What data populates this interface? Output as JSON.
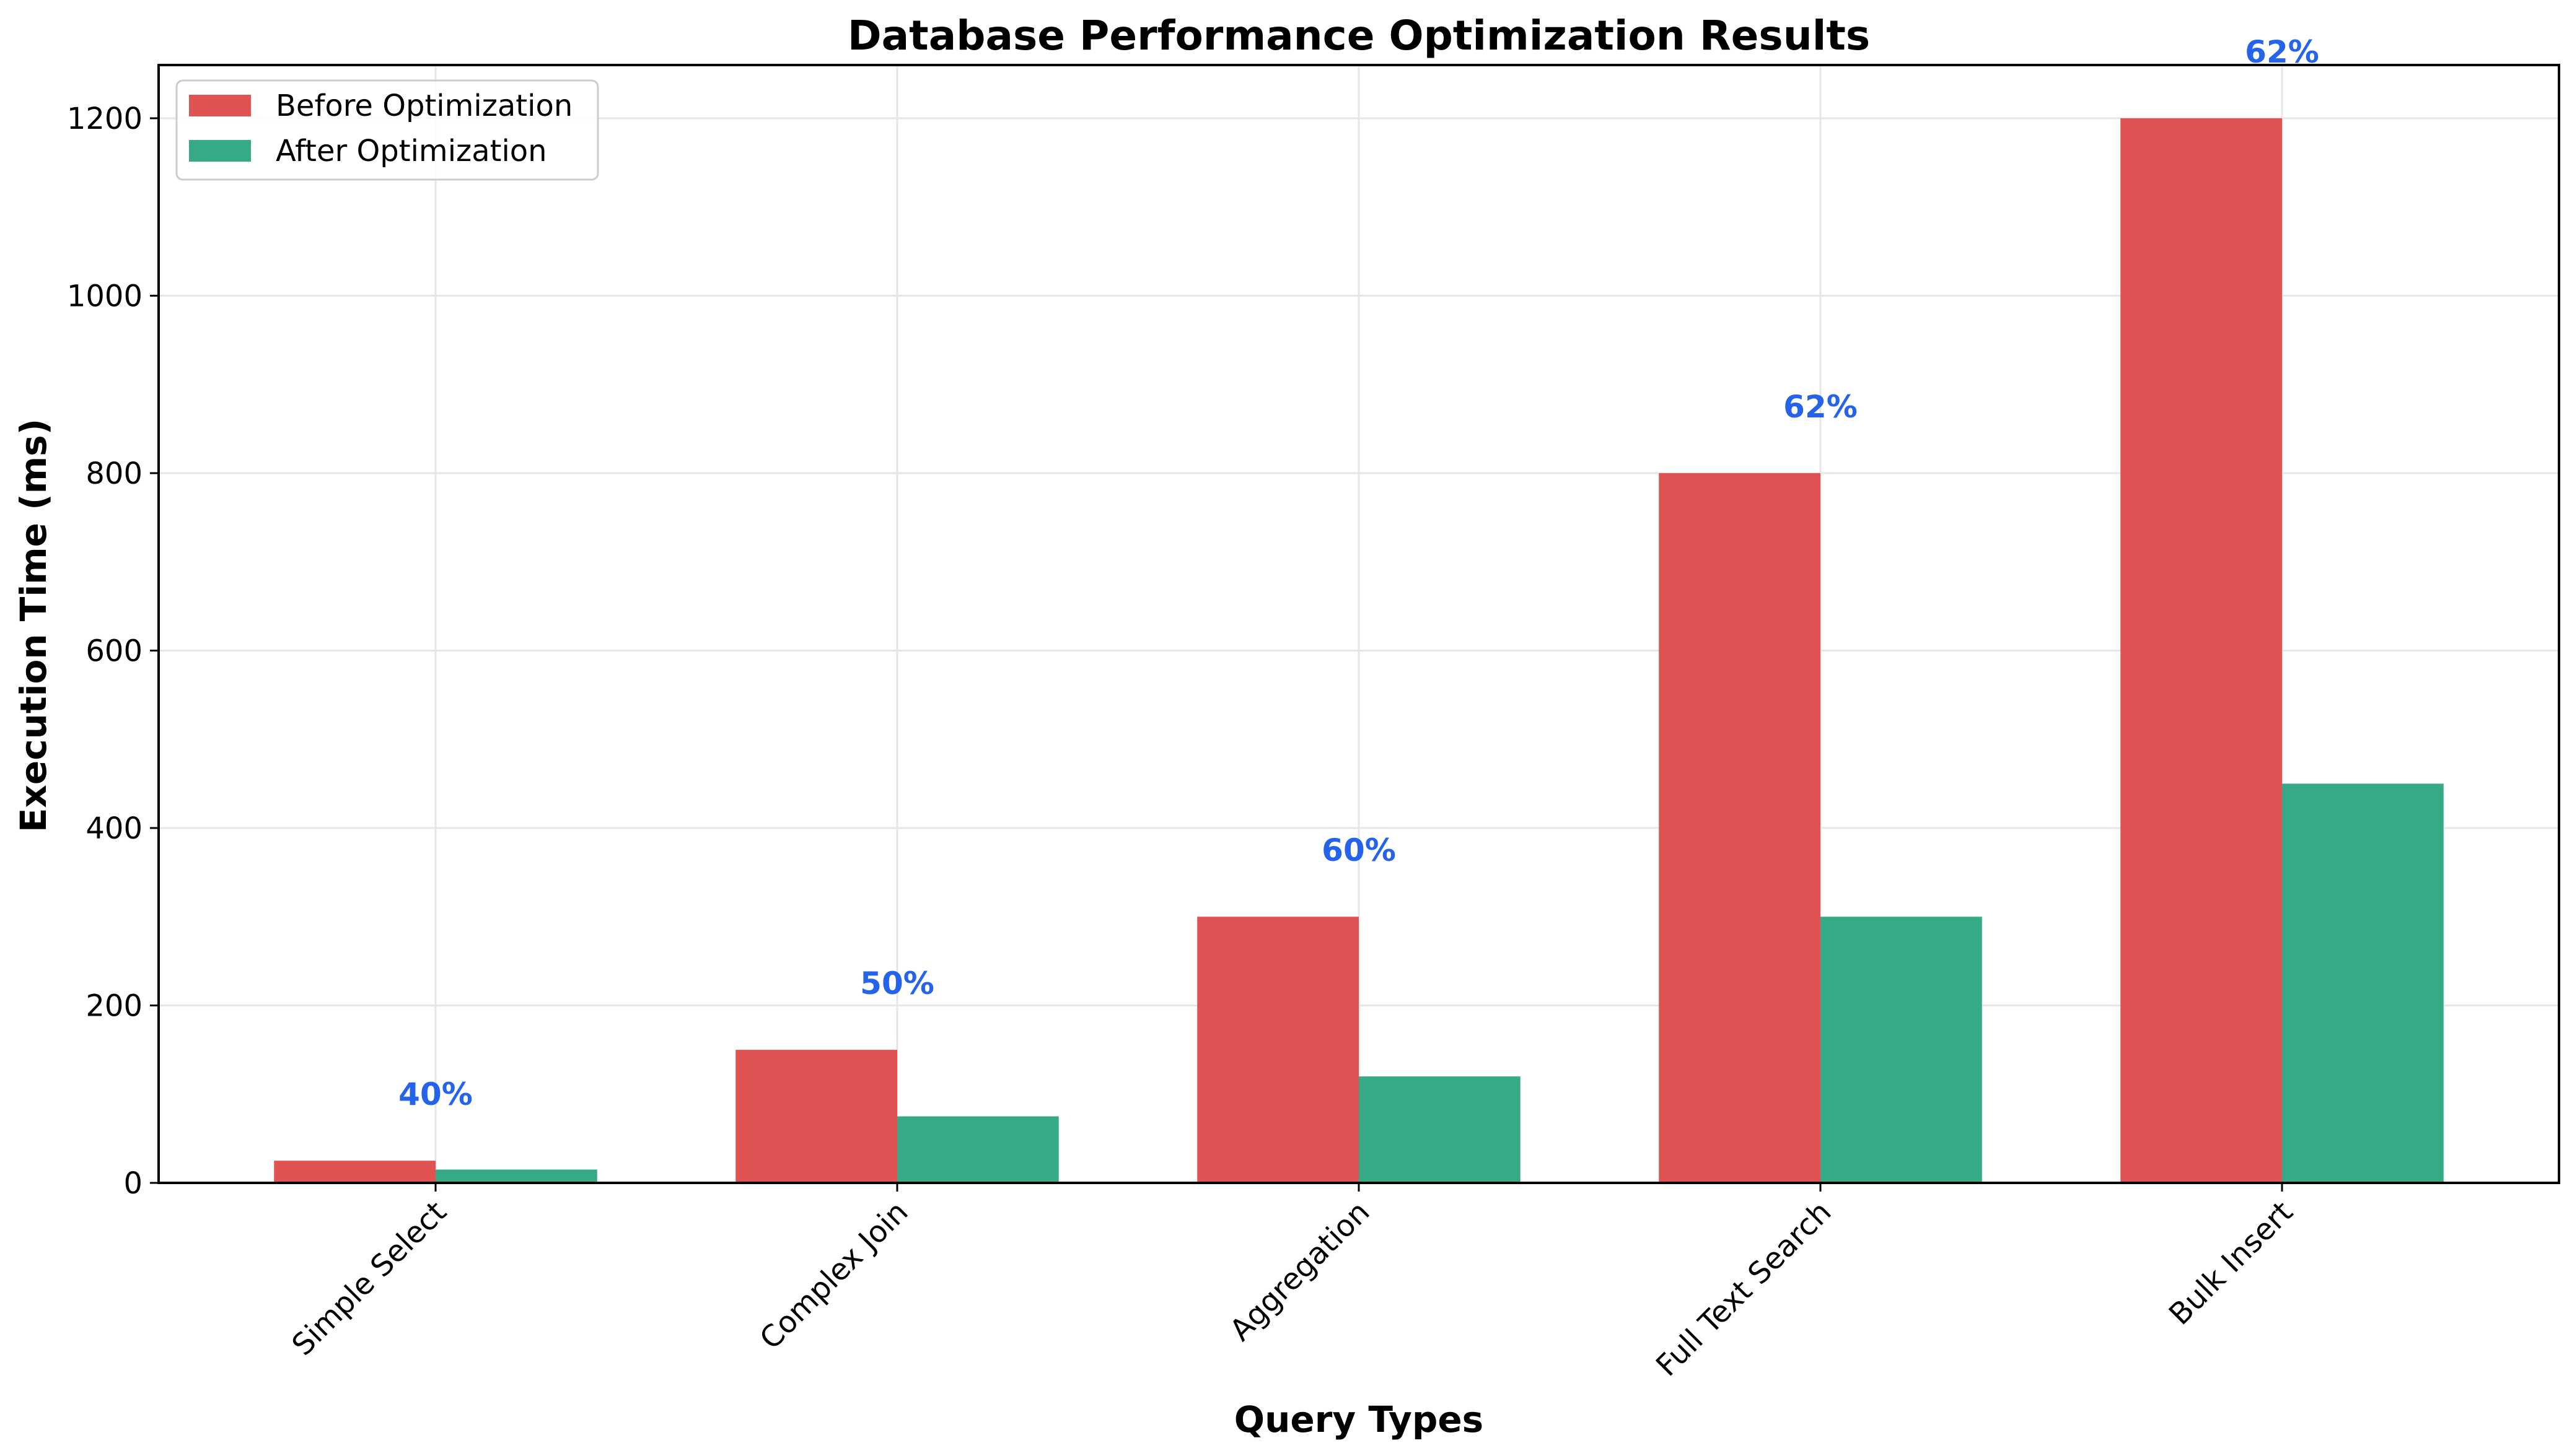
{
  "chart_data": {
    "type": "bar",
    "title": "Database Performance Optimization Results",
    "xlabel": "Query Types",
    "ylabel": "Execution Time (ms)",
    "categories": [
      "Simple Select",
      "Complex Join",
      "Aggregation",
      "Full Text Search",
      "Bulk Insert"
    ],
    "series": [
      {
        "name": "Before Optimization",
        "color": "#e15252",
        "values": [
          25,
          150,
          300,
          800,
          1200
        ]
      },
      {
        "name": "After Optimization",
        "color": "#36a986",
        "values": [
          15,
          75,
          120,
          300,
          450
        ]
      }
    ],
    "annotations": [
      "40%",
      "50%",
      "60%",
      "62%",
      "62%"
    ],
    "annotation_color": "#2563eb",
    "ylim": [
      0,
      1260
    ],
    "yticks": [
      0,
      200,
      400,
      600,
      800,
      1000,
      1200
    ],
    "grid": true,
    "legend_position": "top-left"
  }
}
